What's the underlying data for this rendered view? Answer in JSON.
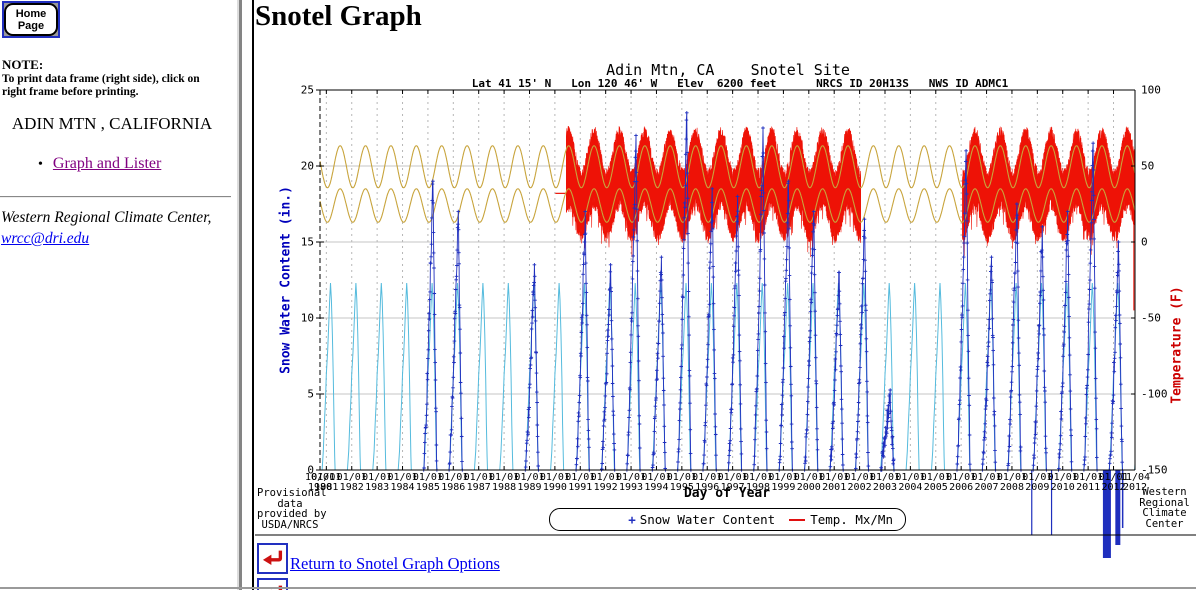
{
  "sidebar": {
    "home_button": {
      "line1": "Home",
      "line2": "Page"
    },
    "note_title": "NOTE:",
    "note_body": "To print data frame (right side), click on right frame before printing.",
    "station_title": "ADIN MTN , CALIFORNIA",
    "bullet": "•",
    "links": [
      {
        "label": "Graph and Lister"
      }
    ],
    "credit_line1": "Western Regional Climate Center,",
    "credit_email": "wrcc@dri.edu"
  },
  "main": {
    "heading": "Snotel Graph",
    "return_link": "Return to Snotel Graph Options"
  },
  "chart_data": {
    "type": "line",
    "title": "Adin Mtn, CA    Snotel Site",
    "subtitle": "Lat 41 15' N   Lon 120 46' W   Elev  6200 feet      NRCS ID 20H13S   NWS ID ADMC1",
    "xlabel": "Day of Year",
    "x_range_years": [
      1980.75,
      2012.846
    ],
    "x_tick_label_top": "01/01",
    "x_tick_years": [
      1981,
      1982,
      1983,
      1984,
      1985,
      1986,
      1987,
      1988,
      1989,
      1990,
      1991,
      1992,
      1993,
      1994,
      1995,
      1996,
      1997,
      1998,
      1999,
      2000,
      2001,
      2002,
      2003,
      2004,
      2005,
      2006,
      2007,
      2008,
      2009,
      2010,
      2011,
      2012
    ],
    "x_edge_ticks": [
      {
        "date": "10/01",
        "year": "1980"
      },
      {
        "date": "11/04",
        "year": "2012"
      }
    ],
    "y_left": {
      "label": "Snow Water Content (in.)",
      "range": [
        0,
        25
      ],
      "ticks": [
        0,
        5,
        10,
        15,
        20,
        25
      ],
      "color": "#0000bb"
    },
    "y_right": {
      "label": "Temperature (F)",
      "range": [
        -150,
        100
      ],
      "ticks": [
        -150,
        -100,
        -50,
        0,
        50,
        100
      ],
      "color": "#cc0000"
    },
    "grid": {
      "h_values": [
        5,
        10,
        15,
        20
      ],
      "v_dashed_every_year": true
    },
    "legend": {
      "items": [
        {
          "marker": "+",
          "label": "Snow Water Content",
          "color": "#2230c0"
        },
        {
          "marker": "—",
          "label": "Temp. Mx/Mn",
          "color": "#e01010"
        }
      ]
    },
    "series": {
      "snow_normal": {
        "name": "Snow Water Content normal",
        "color": "#55bbdd",
        "annual_peak_in": 12.3,
        "peak_date": "Mar 1",
        "season": "Nov–May"
      },
      "snow_actual": {
        "name": "Snow Water Content",
        "color": "#1f2fbe",
        "marker": "+",
        "winter_peaks_in": {
          "1985": 19,
          "1986": 17,
          "1989": 13.5,
          "1991": 17,
          "1992": 13.5,
          "1993": 22,
          "1994": 14,
          "1995": 23.5,
          "1996": 18.5,
          "1997": 18,
          "1998": 22.5,
          "1999": 19,
          "2000": 17,
          "2001": 13,
          "2002": 16.5,
          "2003": 5,
          "2006": 21,
          "2007": 14,
          "2008": 17.5,
          "2009": 16,
          "2010": 17,
          "2011": 21.5,
          "2012": 15
        }
      },
      "temp_normal_max_f": {
        "name": "Temp normal max",
        "color": "#c8a43c",
        "summer_peak_f": 63.3,
        "winter_low_f": 35.7
      },
      "temp_normal_min_f": {
        "name": "Temp normal min",
        "color": "#c8a43c",
        "summer_peak_f": 35,
        "winter_low_f": 13
      },
      "temp_daily": {
        "name": "Temp. Mx/Mn",
        "color": "#ee1206",
        "data_ranges_years": [
          [
            1990.45,
            2002.05
          ],
          [
            2006.05,
            2012.846
          ]
        ]
      }
    },
    "annotations": {
      "provisional": [
        "Provisional",
        "data",
        "provided by",
        "USDA/NRCS"
      ],
      "credit": [
        "Western",
        "Regional",
        "Climate",
        "Center"
      ]
    }
  }
}
